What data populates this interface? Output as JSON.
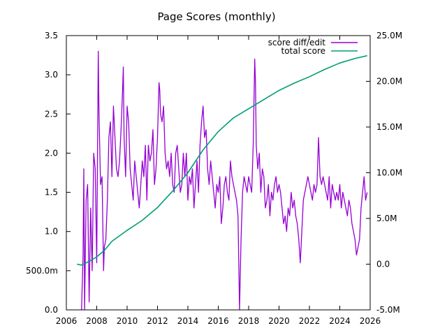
{
  "chart_data": {
    "type": "line",
    "title": "Page Scores (monthly)",
    "x_range": [
      2006,
      2026
    ],
    "x_ticks": [
      "2006",
      "2008",
      "2010",
      "2012",
      "2014",
      "2016",
      "2018",
      "2020",
      "2022",
      "2024",
      "2026"
    ],
    "y_left": {
      "range": [
        0.0,
        3.5
      ],
      "ticks": [
        {
          "value": 0.0,
          "label": "0.0"
        },
        {
          "value": 0.5,
          "label": "500.0m"
        },
        {
          "value": 1.0,
          "label": "1.0"
        },
        {
          "value": 1.5,
          "label": "1.5"
        },
        {
          "value": 2.0,
          "label": "2.0"
        },
        {
          "value": 2.5,
          "label": "2.5"
        },
        {
          "value": 3.0,
          "label": "3.0"
        },
        {
          "value": 3.5,
          "label": "3.5"
        }
      ]
    },
    "y_right": {
      "range": [
        -5.0,
        25.0
      ],
      "unit": "M",
      "ticks": [
        {
          "value": -5.0,
          "label": "-5.0M"
        },
        {
          "value": 0.0,
          "label": "0.0"
        },
        {
          "value": 5.0,
          "label": "5.0M"
        },
        {
          "value": 10.0,
          "label": "10.0M"
        },
        {
          "value": 15.0,
          "label": "15.0M"
        },
        {
          "value": 20.0,
          "label": "20.0M"
        },
        {
          "value": 25.0,
          "label": "25.0M"
        }
      ]
    },
    "grid": false,
    "legend_position": "top-right",
    "series": [
      {
        "name": "score diff/edit",
        "axis": "left",
        "color": "#9400d3",
        "points": [
          [
            2007.0,
            0.0
          ],
          [
            2007.1,
            0.7
          ],
          [
            2007.15,
            1.8
          ],
          [
            2007.2,
            0.0
          ],
          [
            2007.3,
            1.4
          ],
          [
            2007.4,
            1.6
          ],
          [
            2007.5,
            0.1
          ],
          [
            2007.6,
            1.3
          ],
          [
            2007.7,
            0.5
          ],
          [
            2007.8,
            2.0
          ],
          [
            2007.9,
            1.8
          ],
          [
            2008.0,
            0.6
          ],
          [
            2008.1,
            3.3
          ],
          [
            2008.15,
            2.5
          ],
          [
            2008.25,
            1.6
          ],
          [
            2008.35,
            1.7
          ],
          [
            2008.45,
            0.5
          ],
          [
            2008.5,
            0.8
          ],
          [
            2008.6,
            0.9
          ],
          [
            2008.7,
            1.4
          ],
          [
            2008.8,
            2.2
          ],
          [
            2008.9,
            2.4
          ],
          [
            2009.0,
            1.7
          ],
          [
            2009.1,
            2.6
          ],
          [
            2009.2,
            2.2
          ],
          [
            2009.3,
            1.8
          ],
          [
            2009.4,
            1.7
          ],
          [
            2009.5,
            1.9
          ],
          [
            2009.6,
            2.3
          ],
          [
            2009.7,
            2.8
          ],
          [
            2009.75,
            3.1
          ],
          [
            2009.8,
            2.2
          ],
          [
            2009.9,
            1.7
          ],
          [
            2010.0,
            2.6
          ],
          [
            2010.1,
            2.4
          ],
          [
            2010.2,
            1.8
          ],
          [
            2010.3,
            1.6
          ],
          [
            2010.4,
            1.4
          ],
          [
            2010.5,
            1.9
          ],
          [
            2010.6,
            1.7
          ],
          [
            2010.7,
            1.5
          ],
          [
            2010.8,
            1.3
          ],
          [
            2010.9,
            1.6
          ],
          [
            2011.0,
            1.9
          ],
          [
            2011.1,
            1.7
          ],
          [
            2011.2,
            2.1
          ],
          [
            2011.3,
            1.4
          ],
          [
            2011.4,
            2.1
          ],
          [
            2011.5,
            1.9
          ],
          [
            2011.6,
            2.0
          ],
          [
            2011.7,
            2.3
          ],
          [
            2011.8,
            1.6
          ],
          [
            2011.9,
            1.8
          ],
          [
            2012.0,
            2.2
          ],
          [
            2012.1,
            2.9
          ],
          [
            2012.15,
            2.8
          ],
          [
            2012.2,
            2.5
          ],
          [
            2012.3,
            2.4
          ],
          [
            2012.4,
            2.6
          ],
          [
            2012.5,
            2.0
          ],
          [
            2012.6,
            1.8
          ],
          [
            2012.7,
            1.9
          ],
          [
            2012.8,
            1.7
          ],
          [
            2012.9,
            2.0
          ],
          [
            2013.0,
            1.6
          ],
          [
            2013.1,
            1.5
          ],
          [
            2013.2,
            2.0
          ],
          [
            2013.3,
            2.1
          ],
          [
            2013.4,
            1.8
          ],
          [
            2013.5,
            1.5
          ],
          [
            2013.6,
            1.6
          ],
          [
            2013.7,
            2.0
          ],
          [
            2013.8,
            1.7
          ],
          [
            2013.9,
            2.0
          ],
          [
            2014.0,
            1.4
          ],
          [
            2014.1,
            1.7
          ],
          [
            2014.2,
            1.6
          ],
          [
            2014.3,
            1.8
          ],
          [
            2014.4,
            1.3
          ],
          [
            2014.5,
            1.6
          ],
          [
            2014.6,
            1.9
          ],
          [
            2014.7,
            1.5
          ],
          [
            2014.8,
            2.1
          ],
          [
            2014.9,
            2.4
          ],
          [
            2015.0,
            2.6
          ],
          [
            2015.1,
            2.2
          ],
          [
            2015.2,
            2.3
          ],
          [
            2015.3,
            1.8
          ],
          [
            2015.4,
            1.6
          ],
          [
            2015.5,
            1.9
          ],
          [
            2015.6,
            1.7
          ],
          [
            2015.7,
            1.5
          ],
          [
            2015.8,
            1.3
          ],
          [
            2015.9,
            1.6
          ],
          [
            2016.0,
            1.5
          ],
          [
            2016.1,
            1.7
          ],
          [
            2016.2,
            1.1
          ],
          [
            2016.3,
            1.3
          ],
          [
            2016.4,
            1.6
          ],
          [
            2016.5,
            1.7
          ],
          [
            2016.6,
            1.5
          ],
          [
            2016.7,
            1.4
          ],
          [
            2016.8,
            1.9
          ],
          [
            2016.9,
            1.7
          ],
          [
            2017.0,
            1.6
          ],
          [
            2017.1,
            1.5
          ],
          [
            2017.2,
            1.4
          ],
          [
            2017.3,
            1.2
          ],
          [
            2017.4,
            0.0
          ],
          [
            2017.5,
            0.9
          ],
          [
            2017.6,
            1.5
          ],
          [
            2017.7,
            1.7
          ],
          [
            2017.8,
            1.6
          ],
          [
            2017.9,
            1.5
          ],
          [
            2018.0,
            1.7
          ],
          [
            2018.1,
            1.6
          ],
          [
            2018.2,
            1.5
          ],
          [
            2018.3,
            2.1
          ],
          [
            2018.4,
            3.2
          ],
          [
            2018.45,
            2.9
          ],
          [
            2018.5,
            2.1
          ],
          [
            2018.6,
            1.8
          ],
          [
            2018.7,
            2.0
          ],
          [
            2018.8,
            1.5
          ],
          [
            2018.9,
            1.8
          ],
          [
            2019.0,
            1.7
          ],
          [
            2019.1,
            1.3
          ],
          [
            2019.2,
            1.4
          ],
          [
            2019.3,
            1.6
          ],
          [
            2019.4,
            1.2
          ],
          [
            2019.5,
            1.5
          ],
          [
            2019.6,
            1.4
          ],
          [
            2019.7,
            1.6
          ],
          [
            2019.8,
            1.7
          ],
          [
            2019.9,
            1.5
          ],
          [
            2020.0,
            1.6
          ],
          [
            2020.1,
            1.5
          ],
          [
            2020.2,
            1.3
          ],
          [
            2020.3,
            1.1
          ],
          [
            2020.4,
            1.2
          ],
          [
            2020.5,
            1.0
          ],
          [
            2020.6,
            1.3
          ],
          [
            2020.7,
            1.2
          ],
          [
            2020.8,
            1.5
          ],
          [
            2020.9,
            1.3
          ],
          [
            2021.0,
            1.4
          ],
          [
            2021.1,
            1.2
          ],
          [
            2021.2,
            1.1
          ],
          [
            2021.3,
            0.9
          ],
          [
            2021.4,
            0.6
          ],
          [
            2021.5,
            1.0
          ],
          [
            2021.6,
            1.4
          ],
          [
            2021.7,
            1.5
          ],
          [
            2021.8,
            1.6
          ],
          [
            2021.9,
            1.7
          ],
          [
            2022.0,
            1.6
          ],
          [
            2022.1,
            1.5
          ],
          [
            2022.2,
            1.4
          ],
          [
            2022.3,
            1.6
          ],
          [
            2022.4,
            1.5
          ],
          [
            2022.5,
            1.6
          ],
          [
            2022.6,
            2.2
          ],
          [
            2022.7,
            1.7
          ],
          [
            2022.8,
            1.6
          ],
          [
            2022.9,
            1.7
          ],
          [
            2023.0,
            1.6
          ],
          [
            2023.1,
            1.5
          ],
          [
            2023.2,
            1.4
          ],
          [
            2023.3,
            1.7
          ],
          [
            2023.4,
            1.3
          ],
          [
            2023.5,
            1.6
          ],
          [
            2023.6,
            1.5
          ],
          [
            2023.7,
            1.4
          ],
          [
            2023.8,
            1.5
          ],
          [
            2023.9,
            1.4
          ],
          [
            2024.0,
            1.6
          ],
          [
            2024.1,
            1.3
          ],
          [
            2024.2,
            1.5
          ],
          [
            2024.3,
            1.4
          ],
          [
            2024.4,
            1.3
          ],
          [
            2024.5,
            1.2
          ],
          [
            2024.6,
            1.4
          ],
          [
            2024.7,
            1.3
          ],
          [
            2024.8,
            1.1
          ],
          [
            2024.9,
            1.0
          ],
          [
            2025.0,
            0.9
          ],
          [
            2025.1,
            0.7
          ],
          [
            2025.2,
            0.8
          ],
          [
            2025.3,
            0.9
          ],
          [
            2025.4,
            1.3
          ],
          [
            2025.5,
            1.5
          ],
          [
            2025.6,
            1.7
          ],
          [
            2025.7,
            1.4
          ],
          [
            2025.8,
            1.5
          ]
        ]
      },
      {
        "name": "total score",
        "axis": "right",
        "color": "#009e73",
        "points": [
          [
            2006.7,
            0.0
          ],
          [
            2007.0,
            -0.1
          ],
          [
            2007.5,
            0.3
          ],
          [
            2008.0,
            0.8
          ],
          [
            2008.5,
            1.5
          ],
          [
            2009.0,
            2.5
          ],
          [
            2010.0,
            3.7
          ],
          [
            2011.0,
            4.8
          ],
          [
            2012.0,
            6.2
          ],
          [
            2013.0,
            8.0
          ],
          [
            2014.0,
            10.0
          ],
          [
            2015.0,
            12.5
          ],
          [
            2016.0,
            14.5
          ],
          [
            2017.0,
            16.0
          ],
          [
            2018.0,
            17.0
          ],
          [
            2019.0,
            18.0
          ],
          [
            2020.0,
            19.0
          ],
          [
            2021.0,
            19.8
          ],
          [
            2022.0,
            20.5
          ],
          [
            2023.0,
            21.3
          ],
          [
            2024.0,
            22.0
          ],
          [
            2025.0,
            22.5
          ],
          [
            2025.8,
            22.8
          ]
        ]
      }
    ]
  }
}
